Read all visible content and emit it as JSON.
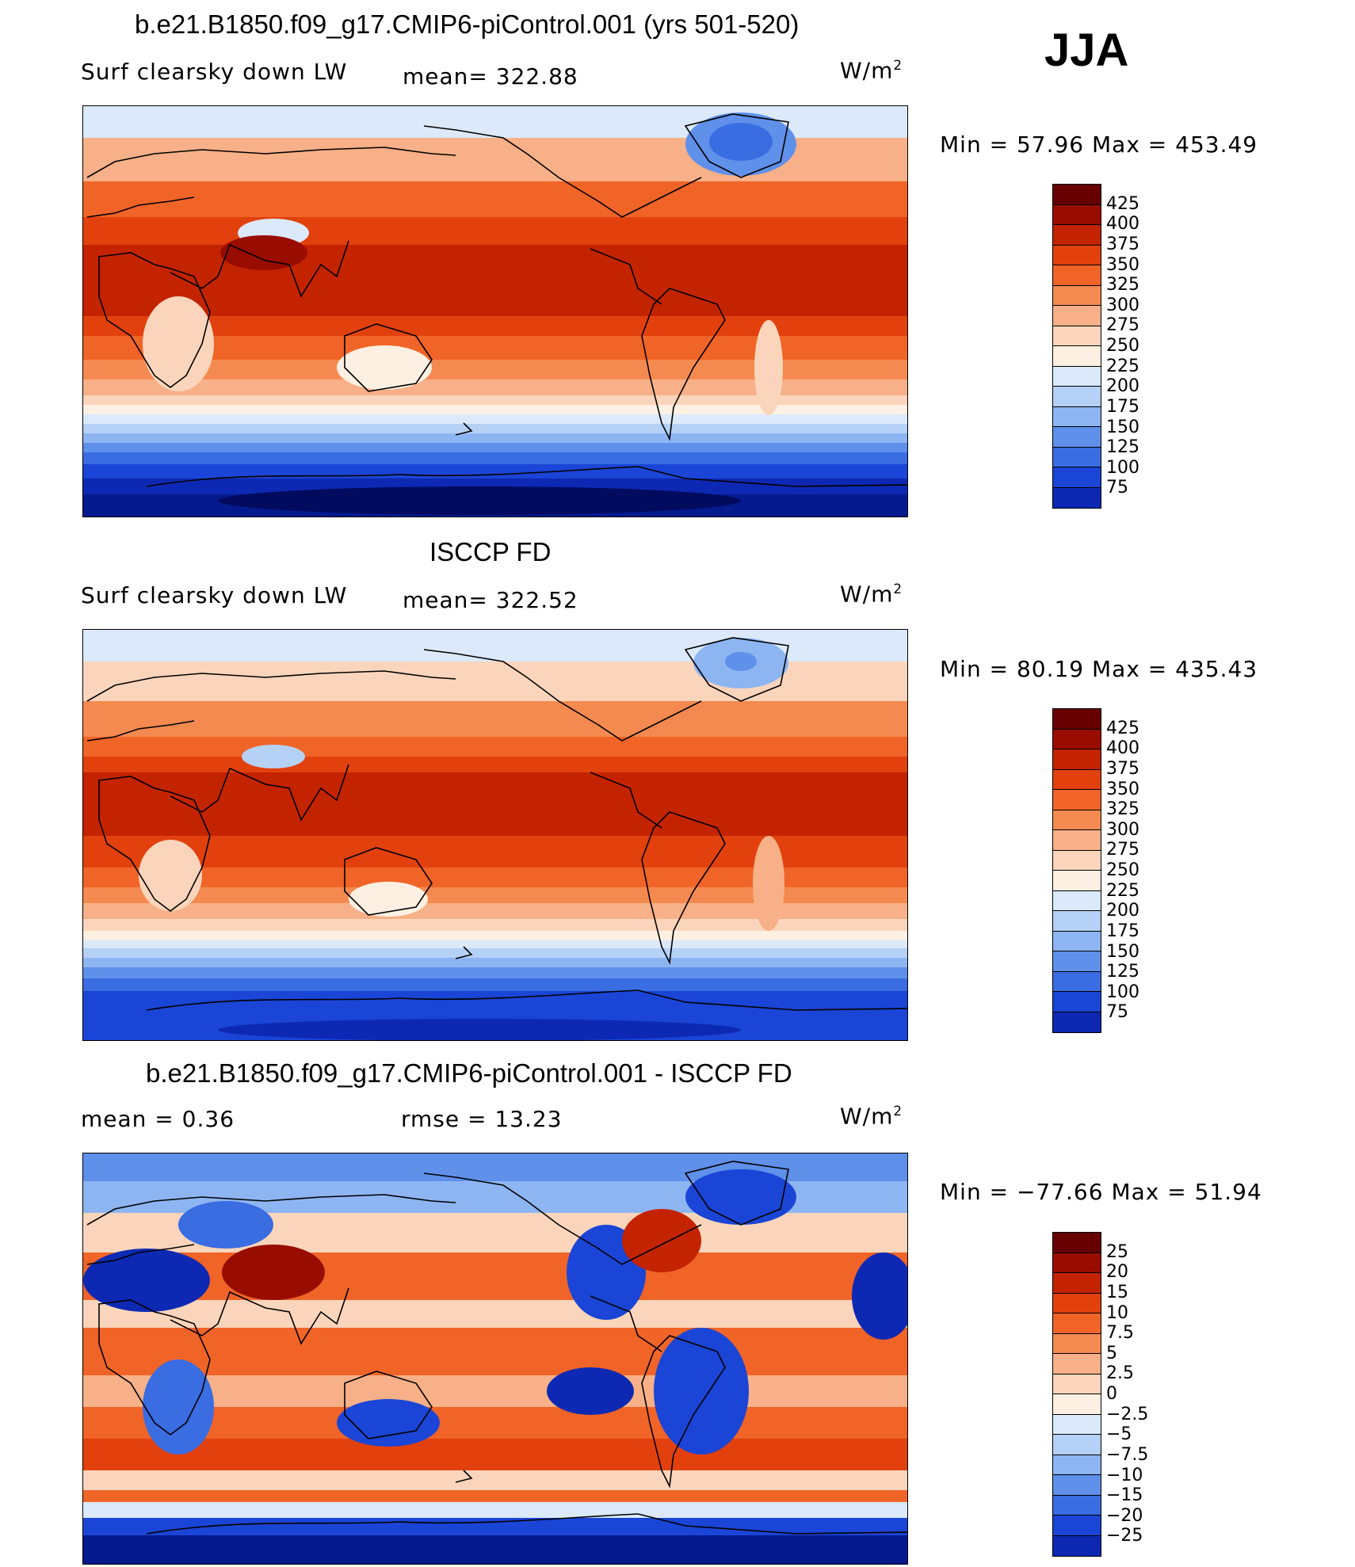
{
  "season": "JJA",
  "panels": [
    {
      "title": "b.e21.B1850.f09_g17.CMIP6-piControl.001 (yrs 501-520)",
      "left_label": "Surf clearsky down LW",
      "center_label": "mean= 322.88",
      "units_base": "W/m",
      "units_exp": "2",
      "minmax": "Min =  57.96 Max = 453.49",
      "palette": "abs",
      "colorbar_levels": [
        "425",
        "400",
        "375",
        "350",
        "325",
        "300",
        "275",
        "250",
        "225",
        "200",
        "175",
        "150",
        "125",
        "100",
        "75"
      ]
    },
    {
      "title": "ISCCP FD",
      "left_label": "Surf clearsky down LW",
      "center_label": "mean= 322.52",
      "units_base": "W/m",
      "units_exp": "2",
      "minmax": "Min =  80.19 Max = 435.43",
      "palette": "abs",
      "colorbar_levels": [
        "425",
        "400",
        "375",
        "350",
        "325",
        "300",
        "275",
        "250",
        "225",
        "200",
        "175",
        "150",
        "125",
        "100",
        "75"
      ]
    },
    {
      "title": "b.e21.B1850.f09_g17.CMIP6-piControl.001 - ISCCP FD",
      "left_label": "mean =    0.36",
      "center_label": "rmse =   13.23",
      "units_base": "W/m",
      "units_exp": "2",
      "minmax": "Min = −77.66 Max =  51.94",
      "palette": "diff",
      "colorbar_levels": [
        "25",
        "20",
        "15",
        "10",
        "7.5",
        "5",
        "2.5",
        "0",
        "−2.5",
        "−5",
        "−7.5",
        "−10",
        "−15",
        "−20",
        "−25"
      ]
    }
  ],
  "colors": {
    "abs": [
      "#670000",
      "#990d00",
      "#c42300",
      "#e2410e",
      "#f06427",
      "#f48a50",
      "#f7b087",
      "#fbd5bb",
      "#fdf0e2",
      "#dbe9fa",
      "#b6d1f6",
      "#8db5f2",
      "#5f90ea",
      "#3a6ce2",
      "#1a45d6",
      "#0d29b3",
      "#061a8f",
      "#020b5e"
    ],
    "diff": [
      "#670000",
      "#990d00",
      "#c42300",
      "#e2410e",
      "#f06427",
      "#f48a50",
      "#f7b087",
      "#fbd5bb",
      "#fdf0e2",
      "#dbe9fa",
      "#b6d1f6",
      "#8db5f2",
      "#5f90ea",
      "#3a6ce2",
      "#1a45d6",
      "#0d29b3",
      "#061a8f",
      "#020b5e"
    ]
  }
}
